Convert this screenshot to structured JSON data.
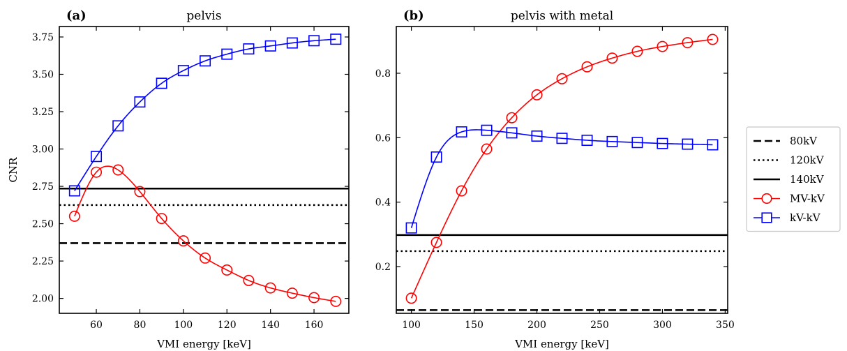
{
  "chart_data": [
    {
      "type": "line",
      "panel_label": "(a)",
      "title": "pelvis",
      "xlabel": "VMI energy [keV]",
      "ylabel": "CNR",
      "xlim": [
        43,
        176
      ],
      "ylim": [
        1.9,
        3.82
      ],
      "xticks": [
        60,
        80,
        100,
        120,
        140,
        160
      ],
      "yticks": [
        2.0,
        2.25,
        2.5,
        2.75,
        3.0,
        3.25,
        3.5,
        3.75
      ],
      "ytick_format": 2,
      "hlines": [
        {
          "name": "80kV",
          "y": 2.37,
          "style": "dashed"
        },
        {
          "name": "120kV",
          "y": 2.625,
          "style": "dotted"
        },
        {
          "name": "140kV",
          "y": 2.735,
          "style": "solid"
        }
      ],
      "series": [
        {
          "name": "MV-kV",
          "color": "#ff0000",
          "marker": "circle",
          "x": [
            50,
            60,
            70,
            80,
            90,
            100,
            110,
            120,
            130,
            140,
            150,
            160,
            170
          ],
          "y": [
            2.55,
            2.845,
            2.86,
            2.715,
            2.535,
            2.385,
            2.27,
            2.19,
            2.12,
            2.07,
            2.035,
            2.005,
            1.98
          ]
        },
        {
          "name": "kV-kV",
          "color": "#0000ff",
          "marker": "square",
          "x": [
            50,
            60,
            70,
            80,
            90,
            100,
            110,
            120,
            130,
            140,
            150,
            160,
            170
          ],
          "y": [
            2.72,
            2.95,
            3.155,
            3.315,
            3.44,
            3.525,
            3.59,
            3.635,
            3.67,
            3.69,
            3.71,
            3.725,
            3.735
          ]
        }
      ]
    },
    {
      "type": "line",
      "panel_label": "(b)",
      "title": "pelvis with metal",
      "xlabel": "VMI energy [keV]",
      "ylabel": "",
      "xlim": [
        88,
        352
      ],
      "ylim": [
        0.055,
        0.945
      ],
      "xticks": [
        100,
        150,
        200,
        250,
        300,
        350
      ],
      "yticks": [
        0.2,
        0.4,
        0.6,
        0.8
      ],
      "ytick_format": 1,
      "hlines": [
        {
          "name": "80kV",
          "y": 0.065,
          "style": "dashed"
        },
        {
          "name": "120kV",
          "y": 0.248,
          "style": "dotted"
        },
        {
          "name": "140kV",
          "y": 0.298,
          "style": "solid"
        }
      ],
      "series": [
        {
          "name": "MV-kV",
          "color": "#ff0000",
          "marker": "circle",
          "x": [
            100,
            120,
            140,
            160,
            180,
            200,
            220,
            240,
            260,
            280,
            300,
            320,
            340
          ],
          "y": [
            0.102,
            0.275,
            0.435,
            0.565,
            0.662,
            0.733,
            0.783,
            0.82,
            0.847,
            0.868,
            0.883,
            0.895,
            0.905
          ]
        },
        {
          "name": "kV-kV",
          "color": "#0000ff",
          "marker": "square",
          "x": [
            100,
            120,
            140,
            160,
            180,
            200,
            220,
            240,
            260,
            280,
            300,
            320,
            340
          ],
          "y": [
            0.32,
            0.54,
            0.618,
            0.623,
            0.615,
            0.605,
            0.598,
            0.592,
            0.588,
            0.585,
            0.582,
            0.58,
            0.578
          ]
        }
      ]
    }
  ],
  "legend": {
    "placement": "right",
    "entries": [
      {
        "label": "80kV",
        "style": "dashed",
        "color": "#000000"
      },
      {
        "label": "120kV",
        "style": "dotted",
        "color": "#000000"
      },
      {
        "label": "140kV",
        "style": "solid",
        "color": "#000000"
      },
      {
        "label": "MV-kV",
        "style": "solid",
        "color": "#ff0000",
        "marker": "circle"
      },
      {
        "label": "kV-kV",
        "style": "solid",
        "color": "#0000ff",
        "marker": "square"
      }
    ]
  }
}
